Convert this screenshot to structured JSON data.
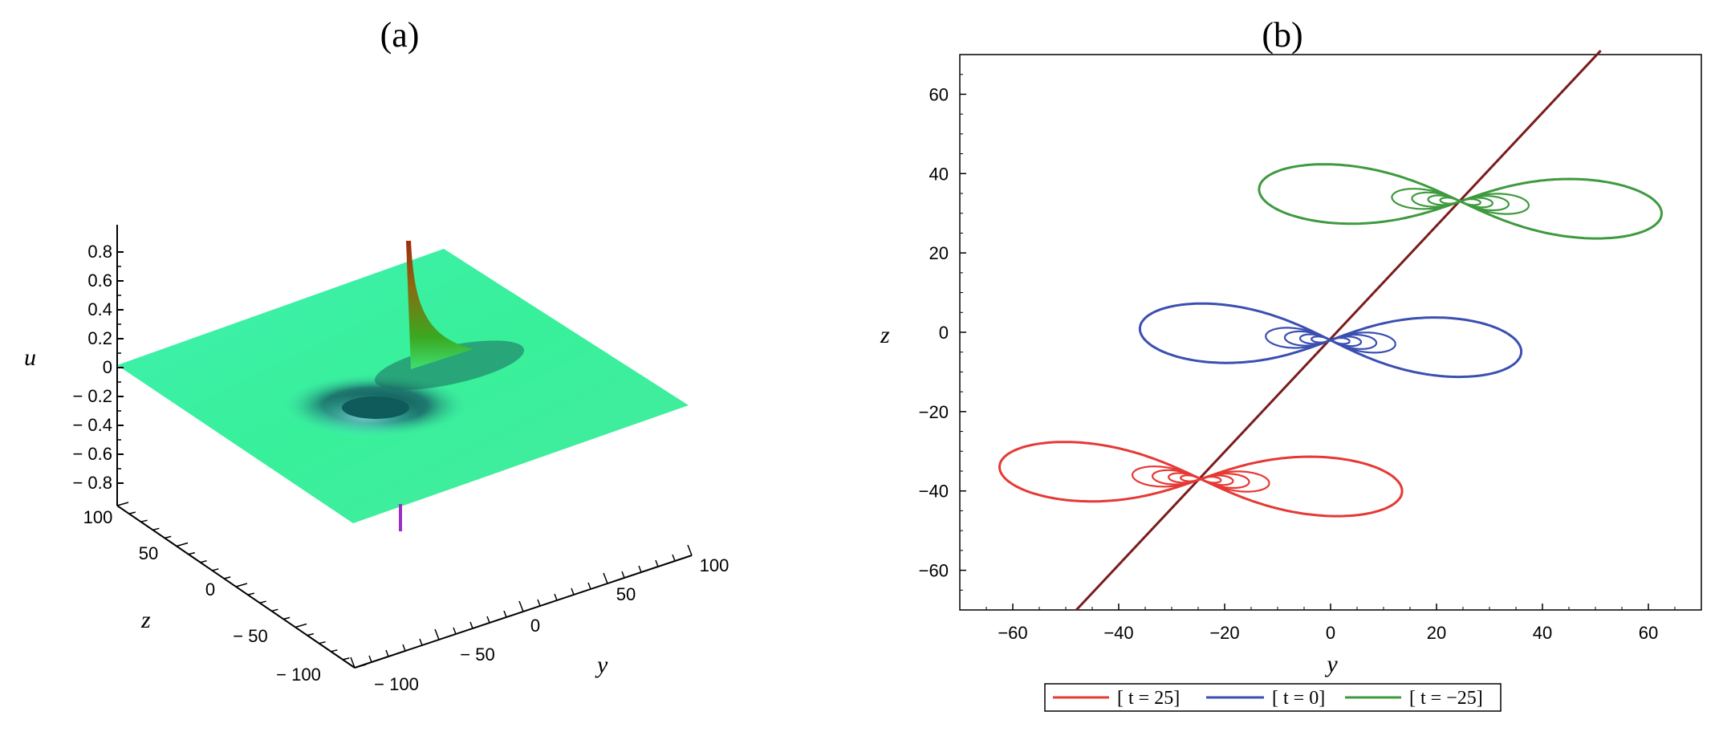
{
  "panel_a": {
    "label": "(a)",
    "zlabel": "u",
    "xlabel": "y",
    "ylabel": "z",
    "u_ticks": [
      "0.8",
      "0.6",
      "0.4",
      "0.2",
      "0",
      "− 0.2",
      "− 0.4",
      "− 0.6",
      "− 0.8"
    ],
    "y_ticks": [
      "− 100",
      "− 50",
      "0",
      "50",
      "100"
    ],
    "z_ticks": [
      "100",
      "50",
      "0",
      "− 50",
      "− 100"
    ]
  },
  "panel_b": {
    "label": "(b)",
    "xlabel": "y",
    "ylabel": "z",
    "x_ticks": [
      "−60",
      "−40",
      "−20",
      "0",
      "20",
      "40",
      "60"
    ],
    "y_ticks": [
      "60",
      "40",
      "20",
      "0",
      "−20",
      "−40",
      "−60"
    ],
    "legend": [
      "[ t = 25]",
      "[ t = 0]",
      "[ t = −25]"
    ]
  },
  "chart_data": [
    {
      "type": "surface",
      "panel": "(a)",
      "x_axis": "y",
      "y_axis": "z",
      "z_axis": "u",
      "xlim": [
        -100,
        100
      ],
      "ylim": [
        -100,
        100
      ],
      "zlim": [
        -0.8,
        0.8
      ],
      "features": {
        "peak_u": 0.8,
        "trough_u": -0.8,
        "background_u": 0
      },
      "colors": {
        "surface": "#3ef0a8",
        "peak": "#a23010",
        "trough": "#0f5a5a",
        "spike": "#9b30c8"
      }
    },
    {
      "type": "line",
      "panel": "(b)",
      "xlabel": "y",
      "ylabel": "z",
      "xlim": [
        -70,
        70
      ],
      "ylim": [
        -70,
        70
      ],
      "grid": false,
      "legend_position": "bottom",
      "trajectory": {
        "x": [
          -48,
          51
        ],
        "y": [
          -70,
          71
        ],
        "color": "#7a1c1c"
      },
      "series": [
        {
          "name": "[ t = 25]",
          "color": "#e53935",
          "center": [
            -24.5,
            -37
          ],
          "lobe_halfwidth": 38,
          "lobe_halfheight": 9.5,
          "tilt": -0.08
        },
        {
          "name": "[ t = 0]",
          "color": "#3a4fb0",
          "center": [
            0,
            -2
          ],
          "lobe_halfwidth": 36,
          "lobe_halfheight": 9.5,
          "tilt": -0.08
        },
        {
          "name": "[ t = −25]",
          "color": "#3e9a3e",
          "center": [
            24.5,
            33
          ],
          "lobe_halfwidth": 38,
          "lobe_halfheight": 9.5,
          "tilt": -0.08
        }
      ]
    }
  ]
}
